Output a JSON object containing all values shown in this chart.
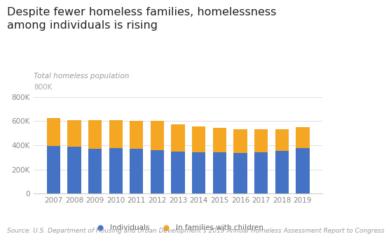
{
  "title": "Despite fewer homeless families, homelessness\namong individuals is rising",
  "subtitle": "Total homeless population",
  "source": "Source: U.S. Department of Housing and Urban Development’s 2019 Annual Homeless Assessment Report to Congress",
  "years": [
    2007,
    2008,
    2009,
    2010,
    2011,
    2012,
    2013,
    2014,
    2015,
    2016,
    2017,
    2018,
    2019
  ],
  "individuals": [
    393000,
    387000,
    371000,
    378000,
    370000,
    362000,
    349000,
    342000,
    340000,
    335000,
    344000,
    353000,
    375000
  ],
  "families": [
    232000,
    222000,
    234000,
    232000,
    232000,
    237000,
    222000,
    216000,
    206000,
    197000,
    188000,
    181000,
    175000
  ],
  "color_individuals": "#4472C4",
  "color_families": "#F5A623",
  "background_color": "#ffffff",
  "ylim": [
    0,
    800000
  ],
  "yticks": [
    0,
    200000,
    400000,
    600000,
    800000
  ],
  "ytick_labels": [
    "0",
    "200K",
    "400K",
    "600K",
    "800K"
  ],
  "legend_individuals": "Individuals",
  "legend_families": "In families with children",
  "title_fontsize": 11.5,
  "subtitle_fontsize": 7.5,
  "source_fontsize": 6.5,
  "tick_fontsize": 7.5,
  "bar_width": 0.65
}
